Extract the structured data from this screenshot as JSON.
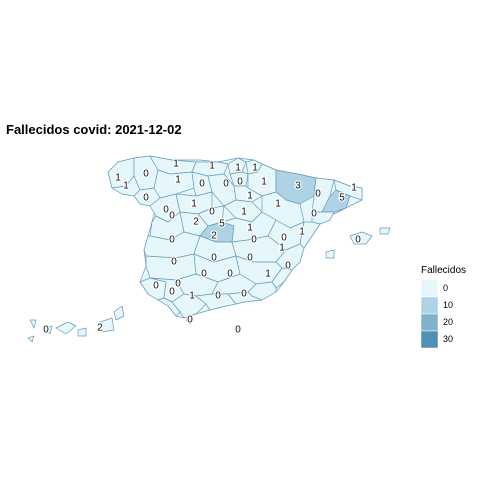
{
  "title": "Fallecidos covid: 2021-12-02",
  "colors": {
    "low": "#e6f7fc",
    "mid": "#aed3e4",
    "high": "#4f91b6",
    "border": "#6b9bb8"
  },
  "legend": {
    "title": "Fallecidos",
    "entries": [
      {
        "label": "0",
        "value": 0
      },
      {
        "label": "10",
        "value": 10
      },
      {
        "label": "20",
        "value": 20
      },
      {
        "label": "30",
        "value": 30
      }
    ]
  },
  "provinces": [
    {
      "id": "a-coruna",
      "value": "1"
    },
    {
      "id": "lugo",
      "value": "0"
    },
    {
      "id": "asturias",
      "value": "1"
    },
    {
      "id": "cantabria",
      "value": "1"
    },
    {
      "id": "bizkaia",
      "value": "1"
    },
    {
      "id": "gipuzkoa",
      "value": "1"
    },
    {
      "id": "navarra",
      "value": "1"
    },
    {
      "id": "pontevedra",
      "value": "1"
    },
    {
      "id": "ourense",
      "value": "0"
    },
    {
      "id": "leon",
      "value": "1"
    },
    {
      "id": "palencia",
      "value": "0"
    },
    {
      "id": "burgos",
      "value": "0"
    },
    {
      "id": "alava",
      "value": "0"
    },
    {
      "id": "la-rioja",
      "value": "1"
    },
    {
      "id": "huesca",
      "value": "3"
    },
    {
      "id": "lleida",
      "value": "0"
    },
    {
      "id": "girona",
      "value": "1"
    },
    {
      "id": "barcelona",
      "value": "5"
    },
    {
      "id": "zamora",
      "value": "0"
    },
    {
      "id": "valladolid",
      "value": "1"
    },
    {
      "id": "soria",
      "value": "1"
    },
    {
      "id": "zaragoza",
      "value": "1"
    },
    {
      "id": "tarragona",
      "value": "0"
    },
    {
      "id": "salamanca",
      "value": "0"
    },
    {
      "id": "avila",
      "value": "2"
    },
    {
      "id": "segovia",
      "value": "0"
    },
    {
      "id": "madrid",
      "value": "5"
    },
    {
      "id": "guadalajara",
      "value": "1"
    },
    {
      "id": "teruel",
      "value": "0"
    },
    {
      "id": "castellon",
      "value": "1"
    },
    {
      "id": "caceres",
      "value": "0"
    },
    {
      "id": "toledo",
      "value": "2"
    },
    {
      "id": "cuenca",
      "value": "0"
    },
    {
      "id": "valencia",
      "value": "1"
    },
    {
      "id": "badajoz",
      "value": "0"
    },
    {
      "id": "ciudad-real",
      "value": "0"
    },
    {
      "id": "albacete",
      "value": "0"
    },
    {
      "id": "alicante",
      "value": "0"
    },
    {
      "id": "huelva",
      "value": "0"
    },
    {
      "id": "sevilla",
      "value": "0"
    },
    {
      "id": "cordoba",
      "value": "0"
    },
    {
      "id": "jaen",
      "value": "0"
    },
    {
      "id": "murcia",
      "value": "1"
    },
    {
      "id": "cadiz",
      "value": "0"
    },
    {
      "id": "malaga",
      "value": "1"
    },
    {
      "id": "granada",
      "value": "0"
    },
    {
      "id": "almeria",
      "value": "0"
    },
    {
      "id": "baleares",
      "value": "0"
    },
    {
      "id": "las-palmas",
      "value": "2"
    },
    {
      "id": "santa-cruz-de-tenerife",
      "value": "0"
    },
    {
      "id": "ceuta",
      "value": "0"
    },
    {
      "id": "melilla",
      "value": "0"
    }
  ]
}
